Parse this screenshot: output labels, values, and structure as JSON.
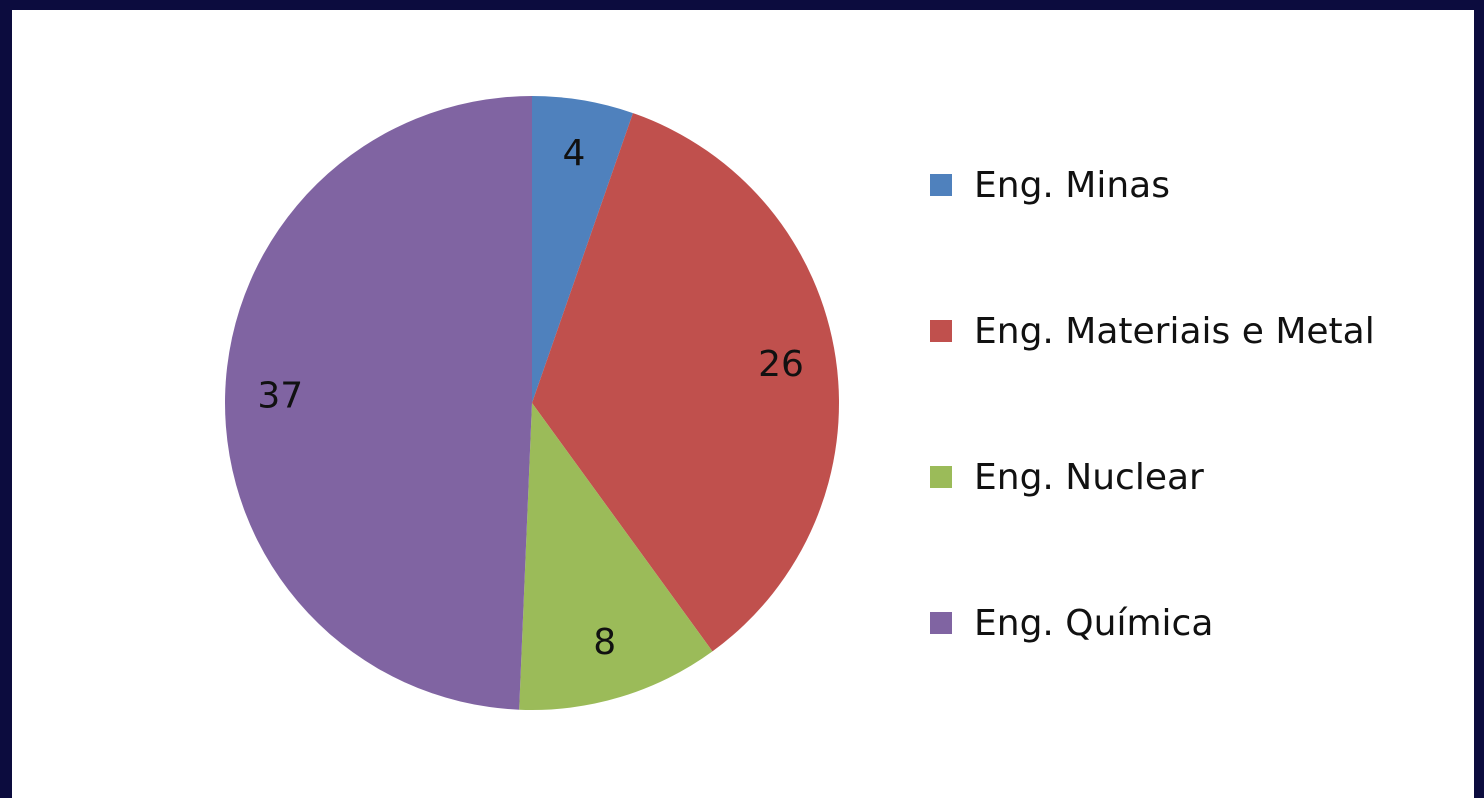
{
  "chart_data": {
    "type": "pie",
    "categories": [
      "Eng. Minas",
      "Eng. Materiais e Metal",
      "Eng. Nuclear",
      "Eng. Química"
    ],
    "values": [
      4,
      26,
      8,
      37
    ],
    "colors": [
      "#4f81bd",
      "#c0504d",
      "#9bbb59",
      "#8064a2"
    ],
    "legend": "right"
  }
}
